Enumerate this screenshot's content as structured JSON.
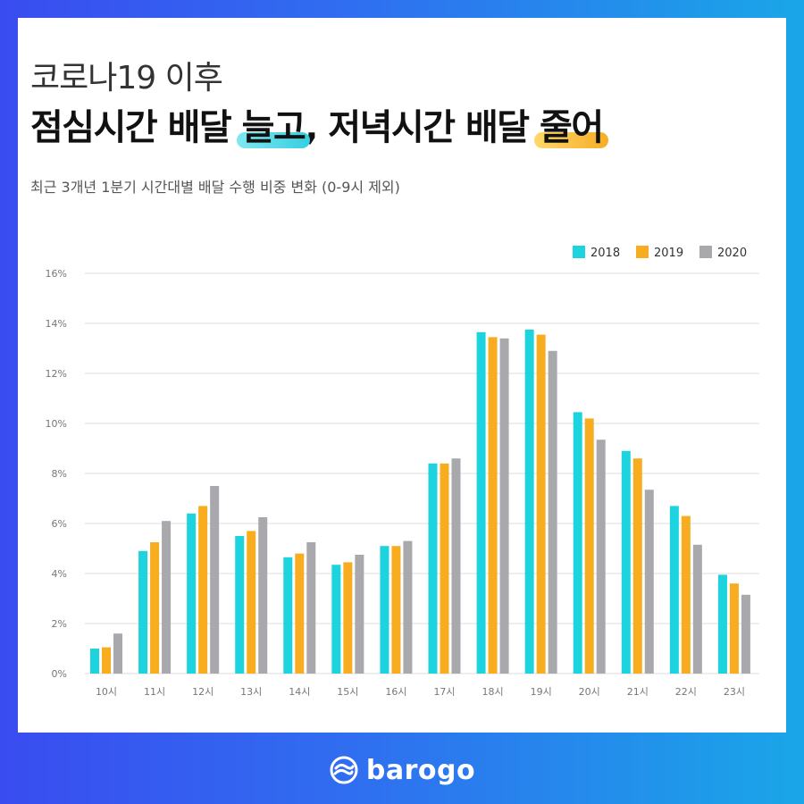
{
  "header": {
    "title_line1": "코로나19 이후",
    "title_line2_part1": "점심시간 배달 ",
    "title_line2_hl1": "늘고",
    "title_line2_part2": ", 저녁시간 배달 ",
    "title_line2_hl2": "줄어",
    "subtitle": "최근 3개년 1분기 시간대별 배달 수행 비중 변화 (0-9시 제외)"
  },
  "brand": {
    "name": "barogo"
  },
  "colors": {
    "s2018": "#1dd3dd",
    "s2019": "#f7ad1f",
    "s2020": "#a9a9ad",
    "grid": "#dcdcdc",
    "axis_text": "#777777"
  },
  "chart_data": {
    "type": "bar",
    "title": "",
    "xlabel": "",
    "ylabel": "",
    "ylim": [
      0,
      16
    ],
    "yticks": [
      "0%",
      "2%",
      "4%",
      "6%",
      "8%",
      "10%",
      "12%",
      "14%",
      "16%"
    ],
    "grid": true,
    "legend_position": "top-right",
    "categories": [
      "10시",
      "11시",
      "12시",
      "13시",
      "14시",
      "15시",
      "16시",
      "17시",
      "18시",
      "19시",
      "20시",
      "21시",
      "22시",
      "23시"
    ],
    "series": [
      {
        "name": "2018",
        "values": [
          1.0,
          4.9,
          6.4,
          5.5,
          4.65,
          4.35,
          5.1,
          8.4,
          13.65,
          13.75,
          10.45,
          8.9,
          6.7,
          3.95
        ]
      },
      {
        "name": "2019",
        "values": [
          1.05,
          5.25,
          6.7,
          5.7,
          4.8,
          4.45,
          5.1,
          8.4,
          13.45,
          13.55,
          10.2,
          8.6,
          6.3,
          3.6
        ]
      },
      {
        "name": "2020",
        "values": [
          1.6,
          6.1,
          7.5,
          6.25,
          5.25,
          4.75,
          5.3,
          8.6,
          13.4,
          12.9,
          9.35,
          7.35,
          5.15,
          3.15
        ]
      }
    ]
  }
}
